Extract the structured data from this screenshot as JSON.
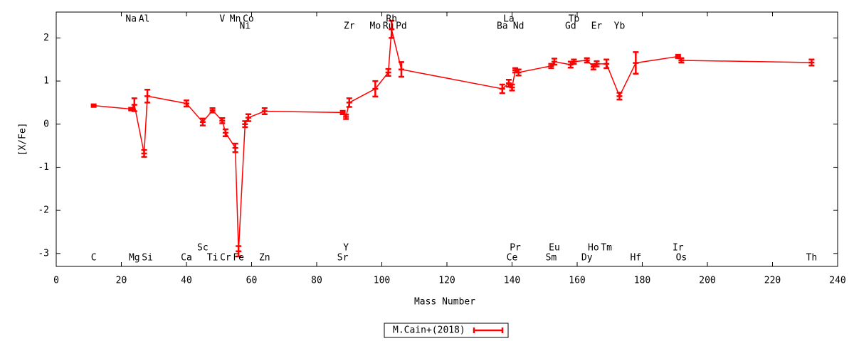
{
  "chart_data": {
    "type": "errorbar",
    "xlabel": "Mass Number",
    "ylabel": "[X/Fe]",
    "xlim": [
      0,
      240
    ],
    "xticks": [
      0,
      20,
      40,
      60,
      80,
      100,
      120,
      140,
      160,
      180,
      200,
      220,
      240
    ],
    "ylim": [
      -3.3,
      2.6
    ],
    "yticks": [
      -3,
      -2,
      -1,
      0,
      1,
      2
    ],
    "legend": "bottom",
    "series": [
      {
        "name": "M.Cain+(2018)",
        "color": "#ff0000",
        "labels": [
          "C",
          "Na",
          "Mg",
          "Al",
          "Si",
          "Ca",
          "Sc",
          "Ti",
          "V",
          "Cr",
          "Mn",
          "Fe",
          "Ni",
          "Co",
          "Zn",
          "Sr",
          "Y",
          "Zr",
          "Mo",
          "Ru",
          "Rh",
          "Pd",
          "Ba",
          "La",
          "Ce",
          "Pr",
          "Nd",
          "Sm",
          "Eu",
          "Gd",
          "Tb",
          "Dy",
          "Ho",
          "Er",
          "Tm",
          "Yb",
          "Hf",
          "Ir",
          "Os",
          "Th"
        ],
        "x": [
          11.5,
          23,
          24,
          27,
          28,
          40,
          45,
          48,
          51,
          52,
          55,
          56,
          58,
          59,
          64,
          88,
          89,
          90,
          98,
          102,
          103,
          106,
          137,
          139,
          140,
          141,
          142,
          152,
          153,
          158,
          159,
          163,
          165,
          166,
          169,
          173,
          178,
          191,
          192,
          232
        ],
        "values": [
          0.43,
          0.35,
          0.45,
          -0.68,
          0.65,
          0.48,
          0.05,
          0.32,
          0.08,
          -0.2,
          -0.55,
          -2.95,
          0.0,
          0.15,
          0.3,
          0.27,
          0.17,
          0.5,
          0.82,
          1.2,
          2.2,
          1.27,
          0.82,
          0.95,
          0.85,
          1.25,
          1.2,
          1.35,
          1.45,
          1.38,
          1.45,
          1.48,
          1.33,
          1.4,
          1.4,
          0.65,
          1.42,
          1.57,
          1.48,
          1.43
        ],
        "errors": [
          0.03,
          0.03,
          0.15,
          0.08,
          0.15,
          0.07,
          0.08,
          0.05,
          0.06,
          0.08,
          0.1,
          0.12,
          0.07,
          0.08,
          0.07,
          0.04,
          0.05,
          0.1,
          0.18,
          0.08,
          0.2,
          0.17,
          0.1,
          0.08,
          0.07,
          0.05,
          0.07,
          0.05,
          0.07,
          0.07,
          0.05,
          0.05,
          0.06,
          0.06,
          0.1,
          0.08,
          0.25,
          0.04,
          0.05,
          0.07
        ]
      }
    ]
  }
}
